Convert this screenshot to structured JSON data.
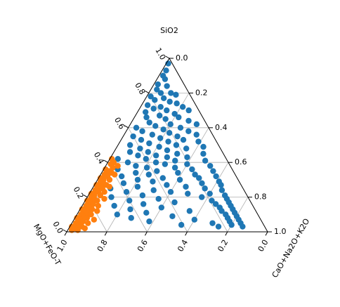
{
  "chart_data": {
    "type": "scatter",
    "subtype": "ternary",
    "title": "",
    "axis_labels": {
      "top": "SiO2",
      "right": "CaO+Na2O+K2O",
      "left": "MgO+FeO-T"
    },
    "ticks": [
      "0.0",
      "0.2",
      "0.4",
      "0.6",
      "0.8",
      "1.0"
    ],
    "tick_values": [
      0.0,
      0.2,
      0.4,
      0.6,
      0.8,
      1.0
    ],
    "grid": true,
    "legend": false,
    "series": [
      {
        "color": "#1f77b4",
        "points": [
          [
            0.97,
            0.01
          ],
          [
            0.93,
            0.02
          ],
          [
            0.9,
            0.02
          ],
          [
            0.88,
            0.04
          ],
          [
            0.85,
            0.02
          ],
          [
            0.84,
            0.07
          ],
          [
            0.82,
            0.03
          ],
          [
            0.8,
            0.06
          ],
          [
            0.8,
            0.11
          ],
          [
            0.79,
            0.14
          ],
          [
            0.78,
            0.02
          ],
          [
            0.77,
            0.09
          ],
          [
            0.76,
            0.05
          ],
          [
            0.75,
            0.13
          ],
          [
            0.74,
            0.17
          ],
          [
            0.73,
            0.03
          ],
          [
            0.72,
            0.1
          ],
          [
            0.72,
            0.21
          ],
          [
            0.71,
            0.07
          ],
          [
            0.7,
            0.14
          ],
          [
            0.7,
            0.25
          ],
          [
            0.69,
            0.04
          ],
          [
            0.68,
            0.19
          ],
          [
            0.67,
            0.12
          ],
          [
            0.66,
            0.22
          ],
          [
            0.66,
            0.06
          ],
          [
            0.65,
            0.16
          ],
          [
            0.64,
            0.28
          ],
          [
            0.63,
            0.09
          ],
          [
            0.62,
            0.2
          ],
          [
            0.62,
            0.33
          ],
          [
            0.61,
            0.13
          ],
          [
            0.6,
            0.04
          ],
          [
            0.6,
            0.26
          ],
          [
            0.59,
            0.18
          ],
          [
            0.58,
            0.31
          ],
          [
            0.58,
            0.08
          ],
          [
            0.57,
            0.22
          ],
          [
            0.56,
            0.14
          ],
          [
            0.56,
            0.36
          ],
          [
            0.55,
            0.27
          ],
          [
            0.55,
            0.05
          ],
          [
            0.54,
            0.19
          ],
          [
            0.53,
            0.1
          ],
          [
            0.53,
            0.31
          ],
          [
            0.52,
            0.24
          ],
          [
            0.52,
            0.39
          ],
          [
            0.51,
            0.15
          ],
          [
            0.5,
            0.06
          ],
          [
            0.5,
            0.29
          ],
          [
            0.49,
            0.21
          ],
          [
            0.49,
            0.43
          ],
          [
            0.48,
            0.12
          ],
          [
            0.48,
            0.35
          ],
          [
            0.47,
            0.26
          ],
          [
            0.46,
            0.17
          ],
          [
            0.46,
            0.08
          ],
          [
            0.45,
            0.32
          ],
          [
            0.45,
            0.45
          ],
          [
            0.44,
            0.22
          ],
          [
            0.44,
            0.13
          ],
          [
            0.43,
            0.38
          ],
          [
            0.43,
            0.28
          ],
          [
            0.42,
            0.04
          ],
          [
            0.42,
            0.18
          ],
          [
            0.41,
            0.33
          ],
          [
            0.41,
            0.48
          ],
          [
            0.4,
            0.24
          ],
          [
            0.4,
            0.1
          ],
          [
            0.39,
            0.4
          ],
          [
            0.39,
            0.29
          ],
          [
            0.38,
            0.15
          ],
          [
            0.38,
            0.52
          ],
          [
            0.37,
            0.35
          ],
          [
            0.37,
            0.21
          ],
          [
            0.36,
            0.07
          ],
          [
            0.36,
            0.44
          ],
          [
            0.35,
            0.27
          ],
          [
            0.35,
            0.55
          ],
          [
            0.34,
            0.17
          ],
          [
            0.34,
            0.38
          ],
          [
            0.33,
            0.47
          ],
          [
            0.33,
            0.24
          ],
          [
            0.32,
            0.58
          ],
          [
            0.32,
            0.11
          ],
          [
            0.31,
            0.32
          ],
          [
            0.31,
            0.5
          ],
          [
            0.3,
            0.2
          ],
          [
            0.3,
            0.41
          ],
          [
            0.29,
            0.61
          ],
          [
            0.29,
            0.28
          ],
          [
            0.28,
            0.14
          ],
          [
            0.28,
            0.53
          ],
          [
            0.27,
            0.36
          ],
          [
            0.27,
            0.63
          ],
          [
            0.26,
            0.22
          ],
          [
            0.26,
            0.46
          ],
          [
            0.25,
            0.09
          ],
          [
            0.25,
            0.56
          ],
          [
            0.24,
            0.31
          ],
          [
            0.24,
            0.65
          ],
          [
            0.23,
            0.4
          ],
          [
            0.23,
            0.18
          ],
          [
            0.22,
            0.6
          ],
          [
            0.22,
            0.49
          ],
          [
            0.21,
            0.27
          ],
          [
            0.21,
            0.68
          ],
          [
            0.2,
            0.12
          ],
          [
            0.2,
            0.57
          ],
          [
            0.19,
            0.36
          ],
          [
            0.19,
            0.7
          ],
          [
            0.18,
            0.22
          ],
          [
            0.18,
            0.63
          ],
          [
            0.17,
            0.45
          ],
          [
            0.17,
            0.72
          ],
          [
            0.16,
            0.3
          ],
          [
            0.16,
            0.66
          ],
          [
            0.15,
            0.16
          ],
          [
            0.15,
            0.74
          ],
          [
            0.14,
            0.4
          ],
          [
            0.14,
            0.69
          ],
          [
            0.13,
            0.25
          ],
          [
            0.13,
            0.76
          ],
          [
            0.12,
            0.55
          ],
          [
            0.12,
            0.71
          ],
          [
            0.11,
            0.34
          ],
          [
            0.11,
            0.78
          ],
          [
            0.1,
            0.2
          ],
          [
            0.1,
            0.74
          ],
          [
            0.09,
            0.48
          ],
          [
            0.09,
            0.8
          ],
          [
            0.08,
            0.28
          ],
          [
            0.08,
            0.76
          ],
          [
            0.07,
            0.6
          ],
          [
            0.07,
            0.82
          ],
          [
            0.06,
            0.38
          ],
          [
            0.06,
            0.78
          ],
          [
            0.05,
            0.84
          ],
          [
            0.05,
            0.7
          ],
          [
            0.04,
            0.8
          ],
          [
            0.04,
            0.55
          ],
          [
            0.03,
            0.86
          ],
          [
            0.03,
            0.74
          ]
        ]
      },
      {
        "color": "#ff7f0e",
        "points": [
          [
            0.42,
            0.01
          ],
          [
            0.4,
            0.03
          ],
          [
            0.39,
            0.02
          ],
          [
            0.37,
            0.04
          ],
          [
            0.36,
            0.01
          ],
          [
            0.35,
            0.03
          ],
          [
            0.34,
            0.05
          ],
          [
            0.33,
            0.02
          ],
          [
            0.32,
            0.04
          ],
          [
            0.31,
            0.01
          ],
          [
            0.3,
            0.03
          ],
          [
            0.3,
            0.06
          ],
          [
            0.29,
            0.02
          ],
          [
            0.28,
            0.04
          ],
          [
            0.27,
            0.01
          ],
          [
            0.27,
            0.06
          ],
          [
            0.26,
            0.03
          ],
          [
            0.25,
            0.05
          ],
          [
            0.24,
            0.02
          ],
          [
            0.23,
            0.04
          ],
          [
            0.23,
            0.07
          ],
          [
            0.22,
            0.01
          ],
          [
            0.21,
            0.03
          ],
          [
            0.21,
            0.06
          ],
          [
            0.2,
            0.02
          ],
          [
            0.19,
            0.04
          ],
          [
            0.18,
            0.01
          ],
          [
            0.18,
            0.06
          ],
          [
            0.17,
            0.03
          ],
          [
            0.16,
            0.05
          ],
          [
            0.15,
            0.02
          ],
          [
            0.15,
            0.08
          ],
          [
            0.14,
            0.04
          ],
          [
            0.13,
            0.01
          ],
          [
            0.13,
            0.06
          ],
          [
            0.12,
            0.03
          ],
          [
            0.11,
            0.05
          ],
          [
            0.1,
            0.02
          ],
          [
            0.1,
            0.07
          ],
          [
            0.09,
            0.04
          ],
          [
            0.08,
            0.01
          ],
          [
            0.08,
            0.06
          ],
          [
            0.07,
            0.03
          ],
          [
            0.06,
            0.05
          ],
          [
            0.05,
            0.02
          ],
          [
            0.05,
            0.08
          ],
          [
            0.04,
            0.04
          ],
          [
            0.03,
            0.01
          ],
          [
            0.03,
            0.06
          ],
          [
            0.02,
            0.03
          ],
          [
            0.01,
            0.02
          ],
          [
            0.01,
            0.05
          ],
          [
            0.38,
            0.06
          ],
          [
            0.33,
            0.07
          ],
          [
            0.26,
            0.08
          ],
          [
            0.19,
            0.09
          ],
          [
            0.12,
            0.09
          ],
          [
            0.07,
            0.1
          ],
          [
            0.02,
            0.08
          ]
        ]
      }
    ]
  }
}
